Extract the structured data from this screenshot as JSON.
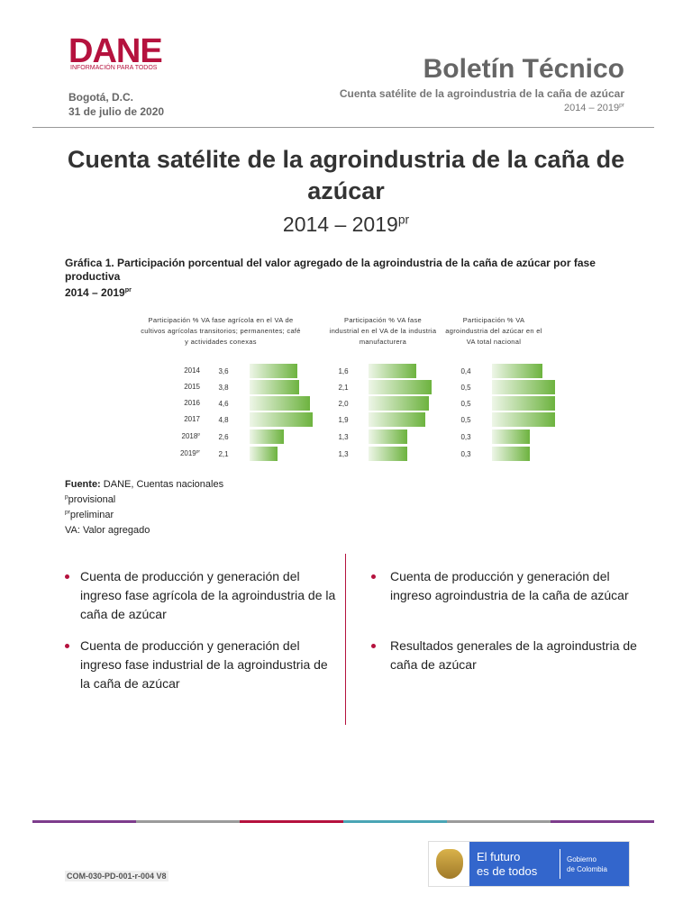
{
  "header": {
    "logo": "DANE",
    "logo_tagline": "INFORMACIÓN PARA TODOS",
    "location": "Bogotá, D.C.",
    "date": "31 de julio de 2020",
    "bulletin": "Boletín Técnico",
    "bulletin_subtitle": "Cuenta satélite de la agroindustria de la caña de azúcar",
    "period": "2014 – 2019",
    "period_sup": "pr"
  },
  "title": {
    "text": "Cuenta satélite de la agroindustria de la caña de azúcar",
    "period": "2014 – 2019",
    "period_sup": "pr"
  },
  "figure": {
    "caption": "Gráfica 1. Participación porcentual del valor agregado de la agroindustria de la caña de azúcar por fase productiva",
    "caption_period": "2014 – 2019",
    "caption_period_sup": "pr",
    "categories": [
      "2014",
      "2015",
      "2016",
      "2017",
      "2018",
      "2019"
    ],
    "category_superscripts": [
      null,
      null,
      null,
      null,
      "p",
      "pr"
    ],
    "bar_color": "#6db33f",
    "panels": [
      {
        "title": "Participación % VA fase agrícola en el VA de cultivos agrícolas transitorios; permanentes; café y actividades conexas",
        "values": [
          3.6,
          3.8,
          4.6,
          4.8,
          2.6,
          2.1
        ],
        "value_labels": [
          "3,6",
          "3,8",
          "4,6",
          "4,8",
          "2,6",
          "2,1"
        ]
      },
      {
        "title": "Participación % VA fase industrial en el VA de la industria manufacturera",
        "values": [
          1.6,
          2.1,
          2.0,
          1.9,
          1.3,
          1.3
        ],
        "value_labels": [
          "1,6",
          "2,1",
          "2,0",
          "1,9",
          "1,3",
          "1,3"
        ]
      },
      {
        "title": "Participación % VA agroindustria del azúcar en el VA total nacional",
        "values": [
          0.4,
          0.5,
          0.5,
          0.5,
          0.3,
          0.3
        ],
        "value_labels": [
          "0,4",
          "0,5",
          "0,5",
          "0,5",
          "0,3",
          "0,3"
        ]
      }
    ]
  },
  "notes": {
    "source_label": "Fuente:",
    "source": "DANE, Cuentas nacionales",
    "p_sup": "p",
    "p": "provisional",
    "pr_sup": "pr",
    "pr": "preliminar",
    "va": "VA: Valor agregado"
  },
  "bullets": {
    "left": [
      "Cuenta de producción y generación del ingreso fase agrícola de la agroindustria de la caña de azúcar",
      "Cuenta de producción y generación del ingreso fase industrial de la agroindustria de la caña de azúcar"
    ],
    "right": [
      "Cuenta de producción y generación del ingreso agroindustria de la caña de azúcar",
      "Resultados generales de la agroindustria de caña de azúcar"
    ]
  },
  "footer": {
    "code": "COM-030-PD-001-r-004 V8",
    "slogan_1": "El futuro",
    "slogan_2": "es de todos",
    "gov_1": "Gobierno",
    "gov_2": "de Colombia"
  }
}
